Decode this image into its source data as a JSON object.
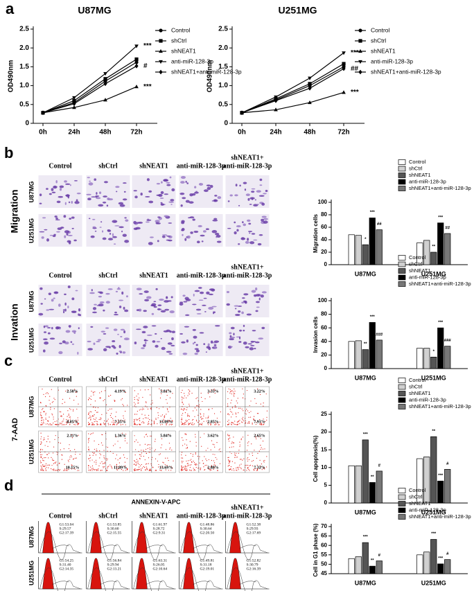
{
  "panel_letters": [
    "a",
    "b",
    "c",
    "d"
  ],
  "column_headers": [
    [
      "Control"
    ],
    [
      "shCtrl"
    ],
    [
      "shNEAT1"
    ],
    [
      "anti-miR-128-3p"
    ],
    [
      "shNEAT1+",
      "anti-miR-128-3p"
    ]
  ],
  "row_labels": [
    "U87MG",
    "U251MG"
  ],
  "migration_label": "Migration",
  "invasion_label": "Invation",
  "flow": {
    "y_label": "7-AAD",
    "x_label": "ANNEXIN-V-APC",
    "upper_right": [
      [
        "2.58%",
        "4.19%",
        "5.81%",
        "3.35%",
        "3.22%"
      ],
      [
        "2.11%",
        "1.36%",
        "5.84%",
        "3.62%",
        "2.65%"
      ]
    ],
    "lower_right": [
      [
        "8.05%",
        "7.35%",
        "13.09%",
        "2.85%",
        "7.91%"
      ],
      [
        "10.15%",
        "11.89%",
        "13.69%",
        "2.88%",
        "7.33%"
      ]
    ]
  },
  "cell_cycle": [
    [
      [
        "G1:53.04",
        "S:29.57",
        "G2:17.39"
      ],
      [
        "G1:53.85",
        "S:30.60",
        "G2:15.55"
      ],
      [
        "G1:61.97",
        "S:28.72",
        "G2:9.31"
      ],
      [
        "G1:48.86",
        "S:30.64",
        "G2:20.50"
      ],
      [
        "G1:52.38",
        "S:29.93",
        "G2:17.69"
      ]
    ],
    [
      [
        "G1:54.25",
        "S:31.40",
        "G2:14.35"
      ],
      [
        "G1:56.84",
        "S:29.94",
        "G2:13.21"
      ],
      [
        "G1:63.31",
        "S:26.05",
        "G2:10.64"
      ],
      [
        "G1:49.81",
        "S:31.18",
        "G2:19.01"
      ],
      [
        "G1:52.82",
        "S:30.79",
        "G2:16.39"
      ]
    ]
  ],
  "chart_data": [
    {
      "type": "line",
      "title": "U87MG",
      "y_label": "OD490nm",
      "categories": [
        "0h",
        "24h",
        "48h",
        "72h"
      ],
      "ylim": [
        0,
        2.5
      ],
      "yticks": [
        0,
        0.5,
        {
          "value": 1,
          "label": "1.0"
        },
        1.5,
        {
          "value": 2,
          "label": "2.0"
        },
        2.5
      ],
      "series": [
        {
          "name": "Control",
          "color": "#000000",
          "marker": "circle",
          "values": [
            0.28,
            0.55,
            1.12,
            1.62
          ]
        },
        {
          "name": "shCtrl",
          "color": "#000000",
          "marker": "square",
          "values": [
            0.28,
            0.6,
            1.18,
            1.7
          ]
        },
        {
          "name": "shNEAT1",
          "color": "#000000",
          "marker": "triangle-up",
          "values": [
            0.28,
            0.42,
            0.62,
            0.97
          ],
          "annotation": "***"
        },
        {
          "name": "anti-miR-128-3p",
          "color": "#000000",
          "marker": "triangle-down",
          "values": [
            0.28,
            0.68,
            1.32,
            2.05
          ],
          "annotation": "***"
        },
        {
          "name": "shNEAT1+anti-miR-128-3p",
          "color": "#000000",
          "marker": "diamond",
          "values": [
            0.28,
            0.52,
            1.05,
            1.52
          ],
          "annotation": "#"
        }
      ]
    },
    {
      "type": "line",
      "title": "U251MG",
      "y_label": "OD490nm",
      "categories": [
        "0h",
        "24h",
        "48h",
        "72h"
      ],
      "ylim": [
        0,
        2.5
      ],
      "yticks": [
        0,
        0.5,
        {
          "value": 1,
          "label": "1.0"
        },
        1.5,
        {
          "value": 2,
          "label": "2.0"
        },
        2.5
      ],
      "series": [
        {
          "name": "Control",
          "color": "#000000",
          "marker": "circle",
          "values": [
            0.28,
            0.62,
            1.0,
            1.5
          ]
        },
        {
          "name": "shCtrl",
          "color": "#000000",
          "marker": "square",
          "values": [
            0.28,
            0.65,
            1.05,
            1.58
          ]
        },
        {
          "name": "shNEAT1",
          "color": "#000000",
          "marker": "triangle-up",
          "values": [
            0.28,
            0.36,
            0.55,
            0.82
          ],
          "annotation": "***"
        },
        {
          "name": "anti-miR-128-3p",
          "color": "#000000",
          "marker": "triangle-down",
          "values": [
            0.28,
            0.7,
            1.2,
            1.87
          ],
          "annotation": "***"
        },
        {
          "name": "shNEAT1+anti-miR-128-3p",
          "color": "#000000",
          "marker": "diamond",
          "values": [
            0.28,
            0.6,
            0.93,
            1.45
          ],
          "annotation": "##"
        }
      ]
    },
    {
      "type": "bar",
      "y_label": "Migration cells",
      "categories": [
        "U87MG",
        "U251MG"
      ],
      "ylim": [
        0,
        100
      ],
      "yticks": [
        0,
        20,
        40,
        60,
        80,
        100
      ],
      "series": [
        {
          "name": "Control",
          "color": "#ffffff",
          "values": [
            48,
            35
          ]
        },
        {
          "name": "shCtrl",
          "color": "#d0d0d0",
          "values": [
            47,
            39
          ]
        },
        {
          "name": "shNEAT1",
          "color": "#555555",
          "values": [
            32,
            20
          ],
          "annotations": [
            "*",
            "**"
          ]
        },
        {
          "name": "anti-miR-128-3p",
          "color": "#000000",
          "values": [
            75,
            67
          ],
          "annotations": [
            "***",
            "***"
          ]
        },
        {
          "name": "shNEAT1+anti-miR-128-3p",
          "color": "#777777",
          "values": [
            56,
            50
          ],
          "annotations": [
            "##",
            "##"
          ]
        }
      ]
    },
    {
      "type": "bar",
      "y_label": "Invasion cells",
      "categories": [
        "U87MG",
        "U251MG"
      ],
      "ylim": [
        0,
        100
      ],
      "yticks": [
        0,
        20,
        40,
        60,
        80,
        100
      ],
      "series": [
        {
          "name": "Control",
          "color": "#ffffff",
          "values": [
            40,
            30
          ]
        },
        {
          "name": "shCtrl",
          "color": "#d0d0d0",
          "values": [
            41,
            30
          ]
        },
        {
          "name": "shNEAT1",
          "color": "#555555",
          "values": [
            28,
            17
          ],
          "annotations": [
            "**",
            "*"
          ]
        },
        {
          "name": "anti-miR-128-3p",
          "color": "#000000",
          "values": [
            68,
            60
          ],
          "annotations": [
            "***",
            "***"
          ]
        },
        {
          "name": "shNEAT1+anti-miR-128-3p",
          "color": "#777777",
          "values": [
            42,
            33
          ],
          "annotations": [
            "###",
            "###"
          ]
        }
      ]
    },
    {
      "type": "bar",
      "y_label": "Cell apoptosis(%)",
      "categories": [
        "U87MG",
        "U251MG"
      ],
      "ylim": [
        0,
        25
      ],
      "yticks": [
        0,
        5,
        10,
        15,
        20,
        25
      ],
      "series": [
        {
          "name": "Control",
          "color": "#ffffff",
          "values": [
            10.5,
            12.5
          ]
        },
        {
          "name": "shCtrl",
          "color": "#d0d0d0",
          "values": [
            10.5,
            13
          ]
        },
        {
          "name": "shNEAT1",
          "color": "#555555",
          "values": [
            17.8,
            18.7
          ],
          "annotations": [
            "***",
            "**"
          ]
        },
        {
          "name": "anti-miR-128-3p",
          "color": "#000000",
          "values": [
            5.8,
            6.2
          ],
          "annotations": [
            "**",
            "***"
          ]
        },
        {
          "name": "shNEAT1+anti-miR-128-3p",
          "color": "#777777",
          "values": [
            9,
            9.5
          ],
          "annotations": [
            "#",
            "#"
          ]
        }
      ]
    },
    {
      "type": "bar",
      "y_label": "Cell in G1 phase (%)",
      "categories": [
        "U87MG",
        "U251MG"
      ],
      "ylim": [
        45,
        70
      ],
      "yticks": [
        45,
        50,
        55,
        60,
        65,
        70
      ],
      "series": [
        {
          "name": "Control",
          "color": "#ffffff",
          "values": [
            53,
            55
          ]
        },
        {
          "name": "shCtrl",
          "color": "#d0d0d0",
          "values": [
            54,
            56.5
          ]
        },
        {
          "name": "shNEAT1",
          "color": "#555555",
          "values": [
            61.5,
            63.2
          ],
          "annotations": [
            "***",
            "***"
          ]
        },
        {
          "name": "anti-miR-128-3p",
          "color": "#000000",
          "values": [
            49,
            50.2
          ],
          "annotations": [
            "**",
            "***"
          ]
        },
        {
          "name": "shNEAT1+anti-miR-128-3p",
          "color": "#777777",
          "values": [
            51.8,
            52.5
          ],
          "annotations": [
            "#",
            "#"
          ]
        }
      ]
    }
  ]
}
